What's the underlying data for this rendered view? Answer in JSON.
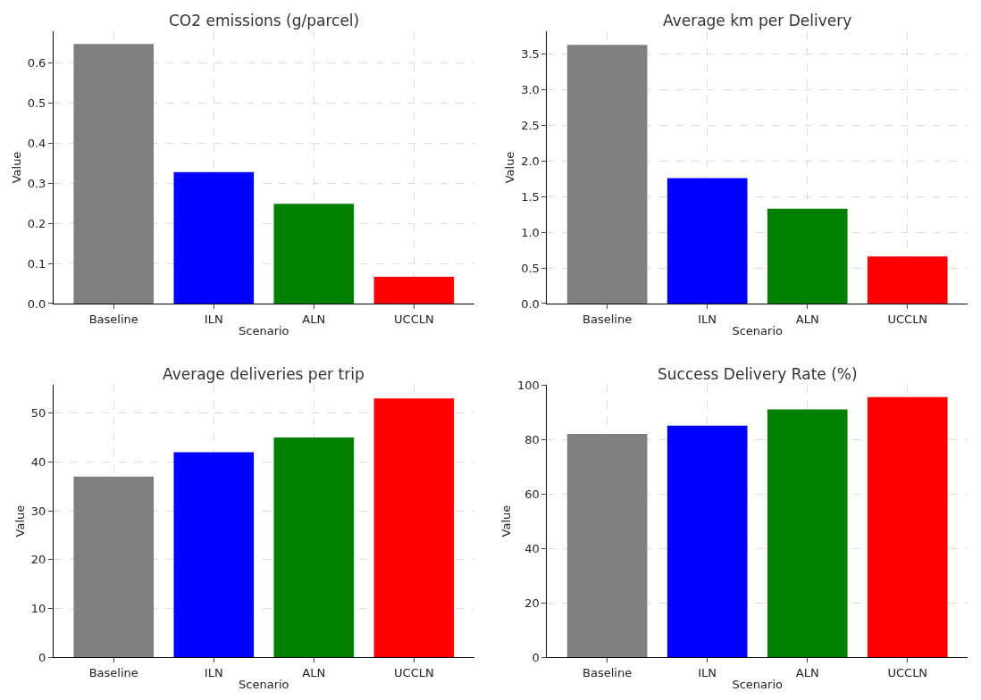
{
  "chart_data": [
    {
      "type": "bar",
      "title": "CO2 emissions (g/parcel)",
      "xlabel": "Scenario",
      "ylabel": "Value",
      "categories": [
        "Baseline",
        "ILN",
        "ALN",
        "UCCLN"
      ],
      "values": [
        0.648,
        0.328,
        0.249,
        0.067
      ],
      "colors": [
        "#808080",
        "#0000ff",
        "#008000",
        "#ff0000"
      ],
      "ylim": [
        0,
        0.68
      ],
      "yticks": [
        {
          "value": 0,
          "label": "0.0"
        },
        0.1,
        0.2,
        0.3,
        0.4,
        0.5,
        0.6
      ],
      "grid": true
    },
    {
      "type": "bar",
      "title": "Average km per Delivery",
      "xlabel": "Scenario",
      "ylabel": "Value",
      "categories": [
        "Baseline",
        "ILN",
        "ALN",
        "UCCLN"
      ],
      "values": [
        3.63,
        1.76,
        1.33,
        0.66
      ],
      "colors": [
        "#808080",
        "#0000ff",
        "#008000",
        "#ff0000"
      ],
      "ylim": [
        0,
        3.82
      ],
      "yticks": [
        {
          "value": 0,
          "label": "0.0"
        },
        0.5,
        {
          "value": 1,
          "label": "1.0"
        },
        1.5,
        {
          "value": 2,
          "label": "2.0"
        },
        2.5,
        {
          "value": 3,
          "label": "3.0"
        },
        3.5
      ],
      "grid": true
    },
    {
      "type": "bar",
      "title": "Average deliveries per trip",
      "xlabel": "Scenario",
      "ylabel": "Value",
      "categories": [
        "Baseline",
        "ILN",
        "ALN",
        "UCCLN"
      ],
      "values": [
        37,
        42,
        45,
        53
      ],
      "colors": [
        "#808080",
        "#0000ff",
        "#008000",
        "#ff0000"
      ],
      "ylim": [
        0,
        55.8
      ],
      "yticks": [
        0,
        10,
        20,
        30,
        40,
        50
      ],
      "grid": true
    },
    {
      "type": "bar",
      "title": "Success Delivery Rate (%)",
      "xlabel": "Scenario",
      "ylabel": "Value",
      "categories": [
        "Baseline",
        "ILN",
        "ALN",
        "UCCLN"
      ],
      "values": [
        82,
        85,
        91,
        95.5
      ],
      "colors": [
        "#808080",
        "#0000ff",
        "#008000",
        "#ff0000"
      ],
      "ylim": [
        0,
        100
      ],
      "yticks": [
        0,
        20,
        40,
        60,
        80,
        100
      ],
      "grid": true
    }
  ]
}
